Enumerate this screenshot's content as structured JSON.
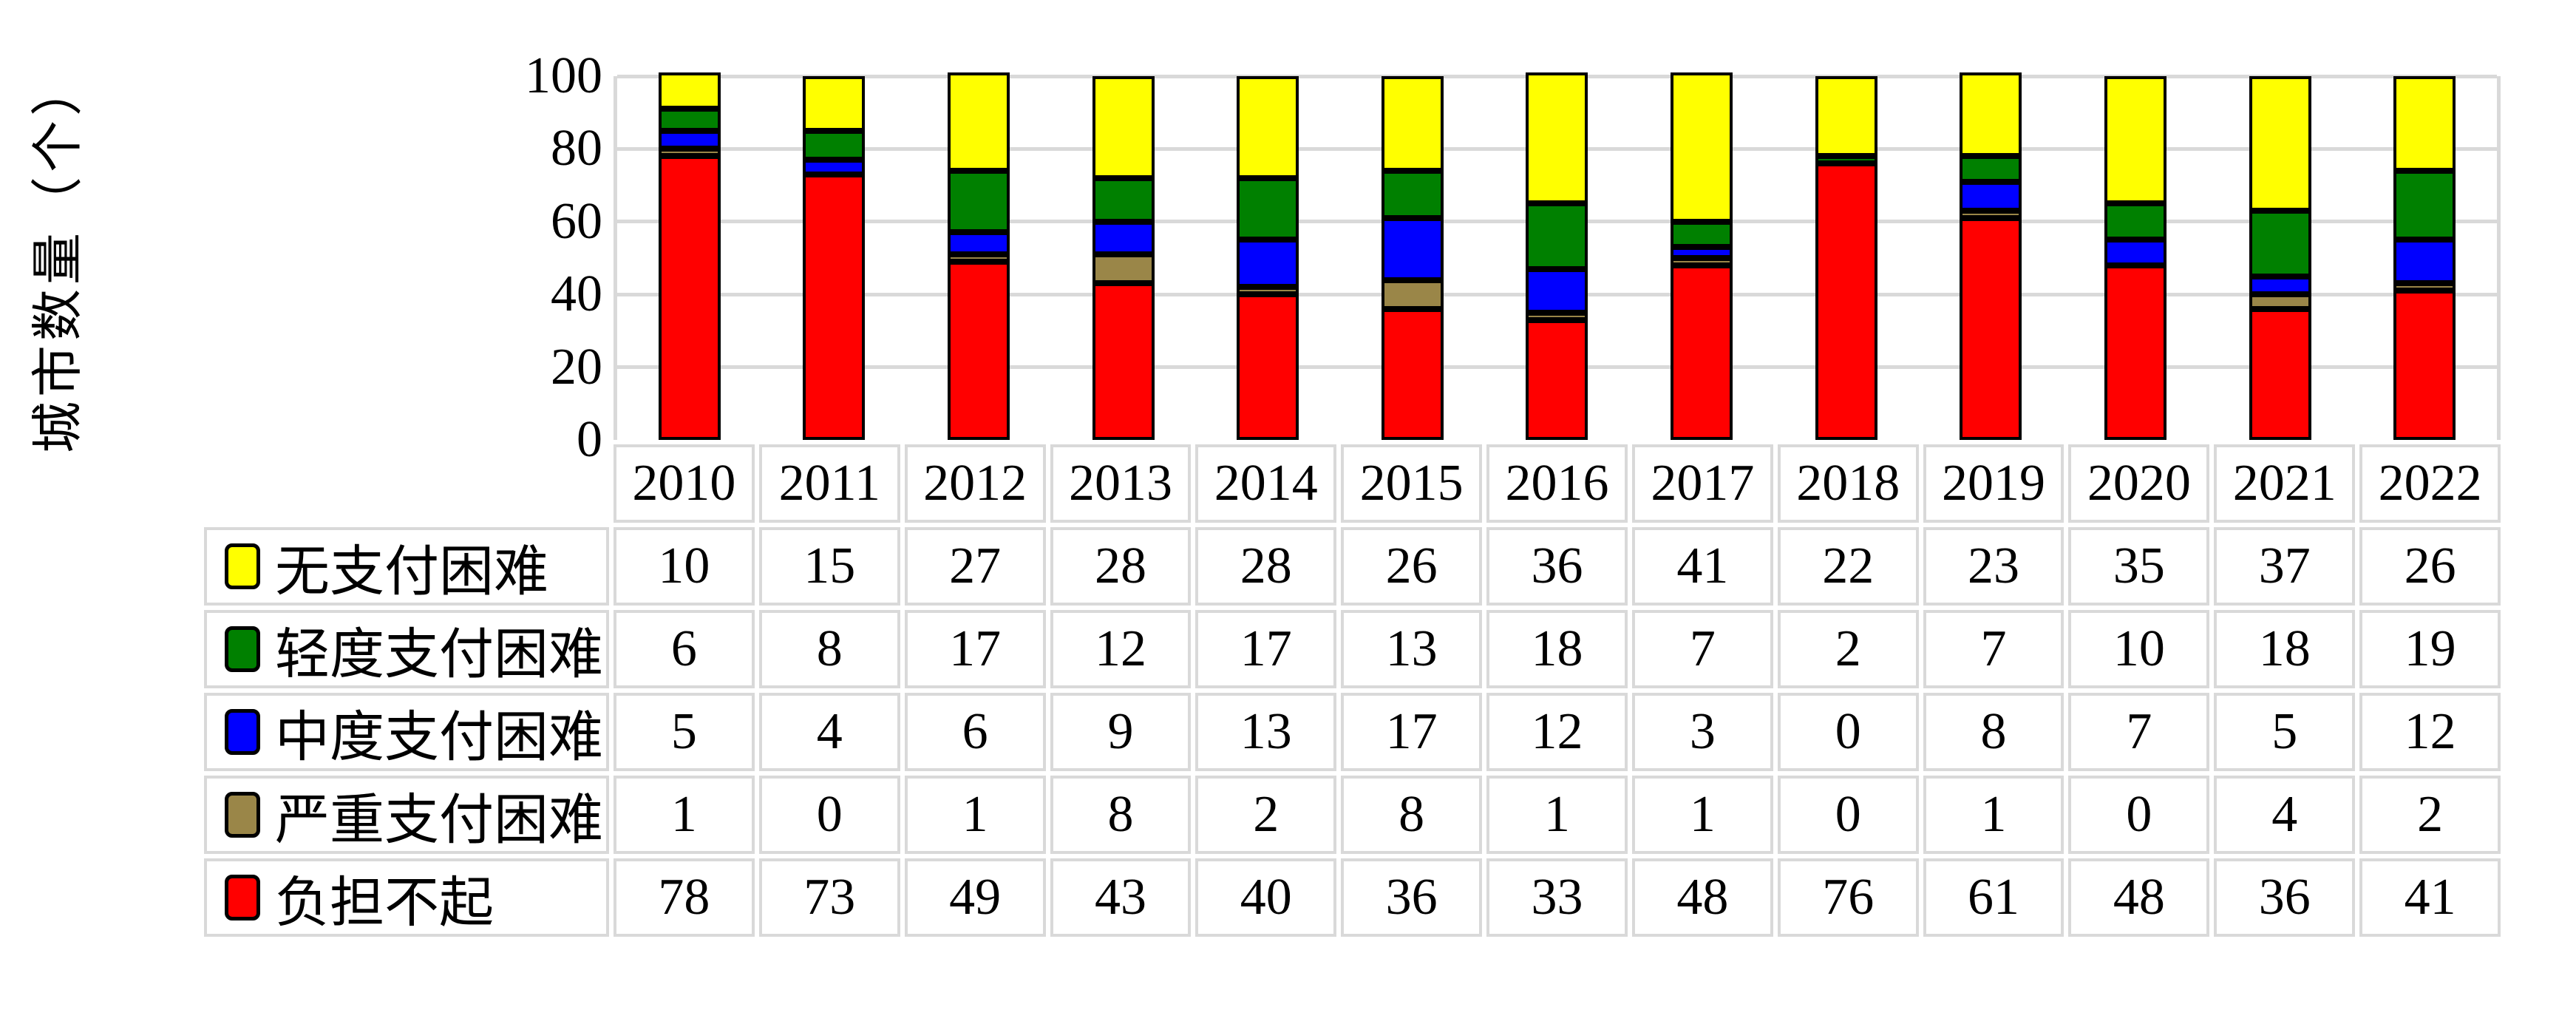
{
  "chart_data": {
    "type": "bar",
    "stacked": true,
    "title": "",
    "xlabel": "",
    "ylabel": "城市数量（个）",
    "ylim": [
      0,
      100
    ],
    "yticks": [
      0,
      20,
      40,
      60,
      80,
      100
    ],
    "grid": true,
    "legend_position": "table-rows-left",
    "categories": [
      "2010",
      "2011",
      "2012",
      "2013",
      "2014",
      "2015",
      "2016",
      "2017",
      "2018",
      "2019",
      "2020",
      "2021",
      "2022"
    ],
    "series": [
      {
        "name": "无支付困难",
        "color": "#FFFF00",
        "values": [
          10,
          15,
          27,
          28,
          28,
          26,
          36,
          41,
          22,
          23,
          35,
          37,
          26
        ]
      },
      {
        "name": "轻度支付困难",
        "color": "#008000",
        "values": [
          6,
          8,
          17,
          12,
          17,
          13,
          18,
          7,
          2,
          7,
          10,
          18,
          19
        ]
      },
      {
        "name": "中度支付困难",
        "color": "#0000FF",
        "values": [
          5,
          4,
          6,
          9,
          13,
          17,
          12,
          3,
          0,
          8,
          7,
          5,
          12
        ]
      },
      {
        "name": "严重支付困难",
        "color": "#9A8648",
        "values": [
          1,
          0,
          1,
          8,
          2,
          8,
          1,
          1,
          0,
          1,
          0,
          4,
          2
        ]
      },
      {
        "name": "负担不起",
        "color": "#FF0000",
        "values": [
          78,
          73,
          49,
          43,
          40,
          36,
          33,
          48,
          76,
          61,
          48,
          36,
          41
        ]
      }
    ],
    "stack_order_note": "series listed top-to-bottom as stacked in each bar; table rows use same order"
  },
  "colors": {
    "background": "#FFFFFF",
    "bar_outline": "#000000",
    "gridline": "#D9D9D9",
    "table_border": "#D9D9D9",
    "text": "#000000"
  }
}
